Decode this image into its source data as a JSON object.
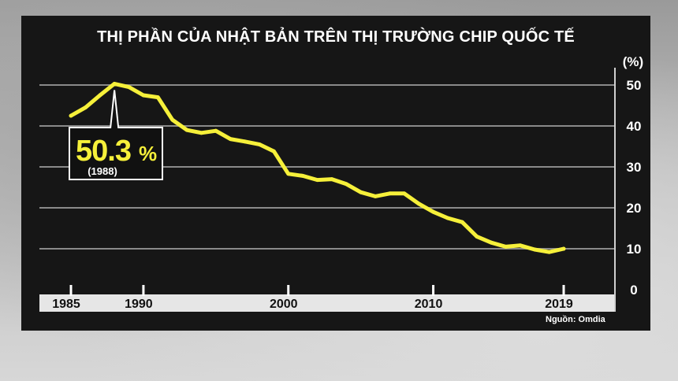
{
  "chart_data": {
    "type": "line",
    "title": "THỊ PHẦN CỦA NHẬT BẢN TRÊN THỊ TRƯỜNG CHIP QUỐC TẾ",
    "xlabel": "",
    "ylabel": "(%)",
    "xlim": [
      1985,
      2019
    ],
    "ylim": [
      0,
      50
    ],
    "x_ticks": [
      "1985",
      "1990",
      "2000",
      "2010",
      "2019"
    ],
    "y_ticks": [
      "0",
      "10",
      "20",
      "30",
      "40",
      "50"
    ],
    "grid": true,
    "series": [
      {
        "name": "",
        "color": "#f6f03a",
        "x": [
          1985,
          1986,
          1987,
          1988,
          1989,
          1990,
          1991,
          1992,
          1993,
          1994,
          1995,
          1996,
          1997,
          1998,
          1999,
          2000,
          2001,
          2002,
          2003,
          2004,
          2005,
          2006,
          2007,
          2008,
          2009,
          2010,
          2011,
          2012,
          2013,
          2014,
          2015,
          2016,
          2017,
          2018,
          2019
        ],
        "values": [
          42.5,
          44.5,
          47.5,
          50.3,
          49.5,
          47.5,
          47.0,
          41.5,
          39.0,
          38.3,
          38.8,
          36.8,
          36.2,
          35.5,
          33.8,
          28.3,
          27.8,
          26.8,
          27.0,
          25.8,
          23.8,
          22.8,
          23.5,
          23.5,
          21.0,
          19.0,
          17.5,
          16.5,
          13.0,
          11.5,
          10.5,
          10.8,
          9.8,
          9.2,
          10.0
        ]
      }
    ],
    "annotation": {
      "value_text": "50.3",
      "unit": "%",
      "year_text": "(1988)",
      "x": 1988,
      "y": 50.3
    },
    "source": "Nguồn: Omdia"
  }
}
